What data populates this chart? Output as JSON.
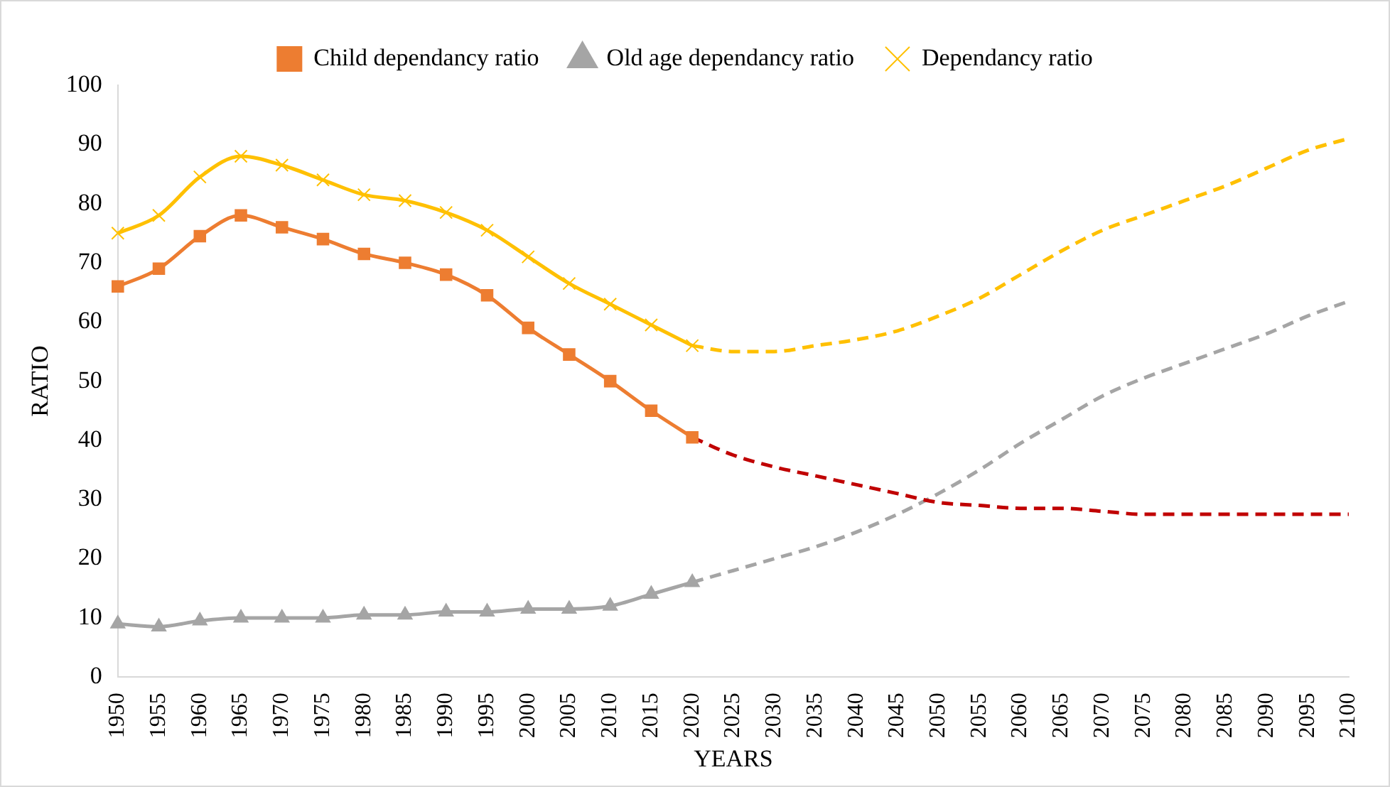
{
  "chart_data": {
    "type": "line",
    "xlabel": "YEARS",
    "ylabel": "RATIO",
    "categories": [
      "1950",
      "1955",
      "1960",
      "1965",
      "1970",
      "1975",
      "1980",
      "1985",
      "1990",
      "1995",
      "2000",
      "2005",
      "2010",
      "2015",
      "2020",
      "2025",
      "2030",
      "2035",
      "2040",
      "2045",
      "2050",
      "2055",
      "2060",
      "2065",
      "2070",
      "2075",
      "2080",
      "2085",
      "2090",
      "2095",
      "2100"
    ],
    "ylim": [
      0,
      100
    ],
    "yticks": [
      0,
      10,
      20,
      30,
      40,
      50,
      60,
      70,
      80,
      90,
      100
    ],
    "grid": false,
    "legend": "top",
    "series": [
      {
        "name": "Child dependancy ratio",
        "color": "#ed7d31",
        "marker": "square",
        "line_style": "solid",
        "values": [
          66,
          69,
          74.5,
          78,
          76,
          74,
          71.5,
          70,
          68,
          64.5,
          59,
          54.5,
          50,
          45,
          40.5,
          null,
          null,
          null,
          null,
          null,
          null,
          null,
          null,
          null,
          null,
          null,
          null,
          null,
          null,
          null,
          null
        ]
      },
      {
        "name": "Old age dependancy ratio",
        "color": "#a5a5a5",
        "marker": "triangle",
        "line_style": "solid",
        "values": [
          9,
          8.5,
          9.5,
          10,
          10,
          10,
          10.5,
          10.5,
          11,
          11,
          11.5,
          11.5,
          12,
          14,
          16,
          null,
          null,
          null,
          null,
          null,
          null,
          null,
          null,
          null,
          null,
          null,
          null,
          null,
          null,
          null,
          null
        ]
      },
      {
        "name": "Dependancy ratio",
        "color": "#ffc000",
        "marker": "cross",
        "line_style": "solid",
        "values": [
          75,
          78,
          84.5,
          88,
          86.5,
          84,
          81.5,
          80.5,
          78.5,
          75.5,
          71,
          66.5,
          63,
          59.5,
          56,
          null,
          null,
          null,
          null,
          null,
          null,
          null,
          null,
          null,
          null,
          null,
          null,
          null,
          null,
          null,
          null
        ]
      },
      {
        "color": "#c00000",
        "marker": "none",
        "line_style": "dashed",
        "values": [
          null,
          null,
          null,
          null,
          null,
          null,
          null,
          null,
          null,
          null,
          null,
          null,
          null,
          null,
          40.5,
          37.5,
          35.5,
          34,
          32.5,
          31,
          29.5,
          29,
          28.5,
          28.5,
          28,
          27.5,
          27.5,
          27.5,
          27.5,
          27.5,
          27.5
        ]
      },
      {
        "color": "#a5a5a5",
        "marker": "none",
        "line_style": "dashed",
        "values": [
          null,
          null,
          null,
          null,
          null,
          null,
          null,
          null,
          null,
          null,
          null,
          null,
          null,
          null,
          16,
          18,
          20,
          22,
          24.5,
          27.5,
          31,
          35,
          39.5,
          43.5,
          47.5,
          50.5,
          53,
          55.5,
          58,
          61,
          63.5
        ]
      },
      {
        "color": "#ffc000",
        "marker": "none",
        "line_style": "dashed",
        "values": [
          null,
          null,
          null,
          null,
          null,
          null,
          null,
          null,
          null,
          null,
          null,
          null,
          null,
          null,
          56,
          55,
          55,
          56,
          57,
          58.5,
          61,
          64,
          68,
          72,
          75.5,
          78,
          80.5,
          83,
          86,
          89,
          91
        ]
      }
    ]
  }
}
